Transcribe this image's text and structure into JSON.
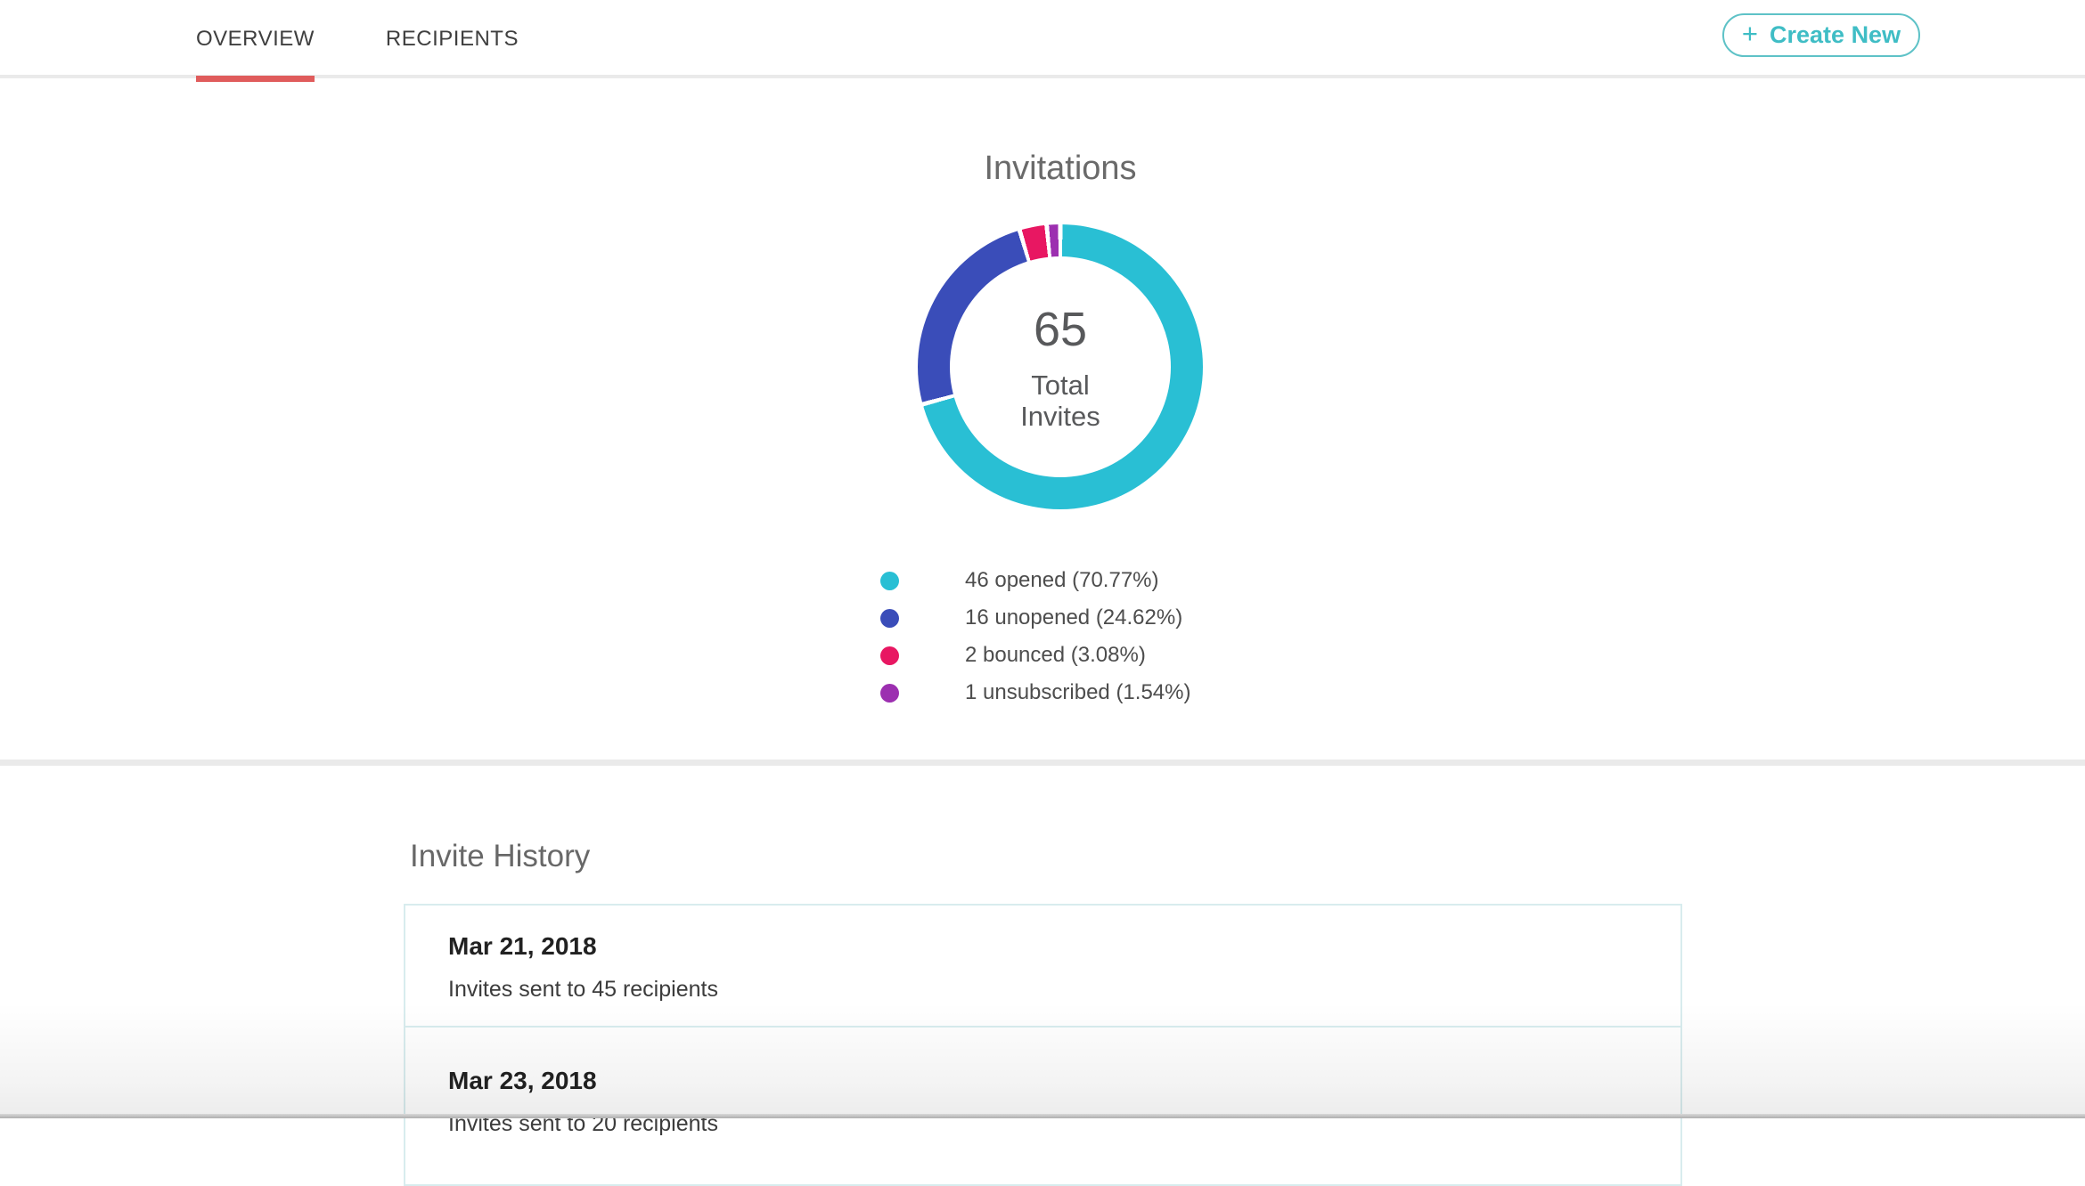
{
  "header": {
    "tabs": [
      {
        "label": "OVERVIEW"
      },
      {
        "label": "RECIPIENTS"
      }
    ],
    "create_button": {
      "plus": "+",
      "label": "Create New"
    }
  },
  "invitations": {
    "title": "Invitations",
    "total_value": "65",
    "total_label_line1": "Total",
    "total_label_line2": "Invites",
    "legend": {
      "items": [
        {
          "label": "46 opened (70.77%)",
          "color": "#29bfd4"
        },
        {
          "label": "16 unopened (24.62%)",
          "color": "#3a4db9"
        },
        {
          "label": "2 bounced (3.08%)",
          "color": "#e81762"
        },
        {
          "label": "1 unsubscribed (1.54%)",
          "color": "#9c2fb0"
        }
      ]
    }
  },
  "chart_data": {
    "type": "pie",
    "subtype": "donut",
    "title": "Invitations",
    "center_value": 65,
    "center_label": "Total Invites",
    "legend_position": "bottom",
    "slices": [
      {
        "label": "opened",
        "count": 46,
        "pct": 70.77,
        "color": "#29bfd4"
      },
      {
        "label": "unopened",
        "count": 16,
        "pct": 24.62,
        "color": "#3a4db9"
      },
      {
        "label": "bounced",
        "count": 2,
        "pct": 3.08,
        "color": "#e81762"
      },
      {
        "label": "unsubscribed",
        "count": 1,
        "pct": 1.54,
        "color": "#9c2fb0"
      }
    ]
  },
  "invite_history": {
    "title": "Invite History",
    "items": [
      {
        "date": "Mar 21, 2018",
        "description": "Invites sent to 45 recipients"
      },
      {
        "date": "Mar 23, 2018",
        "description": "Invites sent to 20 recipients"
      }
    ]
  },
  "colors": {
    "active_tab_indicator": "#e05c5c",
    "create_button_accent": "#3fbdc5",
    "card_border": "#d8ecee",
    "divider": "#eaeaea"
  }
}
